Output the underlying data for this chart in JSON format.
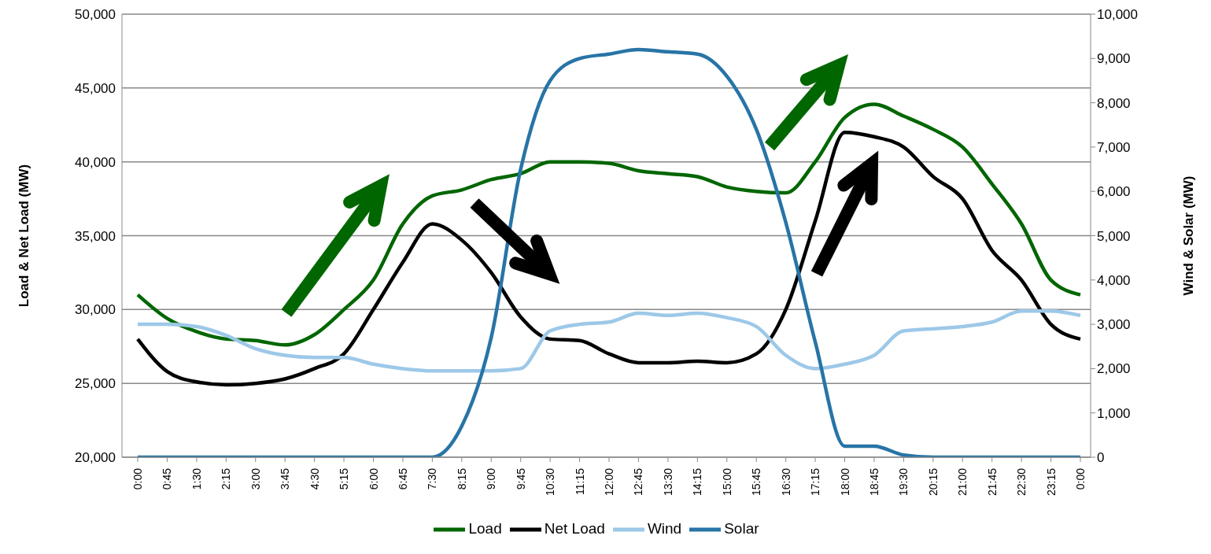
{
  "chart_data": {
    "type": "line",
    "categories": [
      "0:00",
      "0:45",
      "1:30",
      "2:15",
      "3:00",
      "3:45",
      "4:30",
      "5:15",
      "6:00",
      "6:45",
      "7:30",
      "8:15",
      "9:00",
      "9:45",
      "10:30",
      "11:15",
      "12:00",
      "12:45",
      "13:30",
      "14:15",
      "15:00",
      "15:45",
      "16:30",
      "17:15",
      "18:00",
      "18:45",
      "19:30",
      "20:15",
      "21:00",
      "21:45",
      "22:30",
      "23:15",
      "0:00"
    ],
    "series": [
      {
        "name": "Load",
        "color": "#006600",
        "values": [
          31000,
          29400,
          28500,
          28000,
          27900,
          27600,
          28300,
          30000,
          32000,
          35800,
          37700,
          38100,
          38800,
          39200,
          40000,
          40000,
          39900,
          39400,
          39200,
          39000,
          38300,
          38000,
          37900,
          40000,
          43000,
          43900,
          43100,
          42200,
          41000,
          38500,
          35800,
          32000,
          31000
        ]
      },
      {
        "name": "Net Load",
        "color": "#000000",
        "values": [
          28000,
          25800,
          25100,
          24900,
          25000,
          25300,
          26000,
          27000,
          30000,
          33200,
          35800,
          34700,
          32500,
          29500,
          28000,
          27900,
          27000,
          26400,
          26400,
          26500,
          26400,
          27000,
          30000,
          36000,
          42000,
          41700,
          41000,
          39000,
          37500,
          34000,
          32000,
          29000,
          28000
        ]
      },
      {
        "name": "Wind",
        "color": "#9dc8e8",
        "axis": "y2",
        "values": [
          3000,
          3000,
          2950,
          2750,
          2450,
          2300,
          2250,
          2250,
          2100,
          2000,
          1950,
          1950,
          1950,
          2000,
          2850,
          3000,
          3050,
          3250,
          3200,
          3250,
          3150,
          2950,
          2300,
          2000,
          2100,
          2300,
          2850,
          2900,
          2950,
          3050,
          3300,
          3300,
          3200
        ]
      },
      {
        "name": "Solar",
        "color": "#2874a6",
        "axis": "y2",
        "values": [
          0,
          0,
          0,
          0,
          0,
          0,
          0,
          0,
          0,
          0,
          0,
          700,
          2700,
          6500,
          8500,
          9000,
          9100,
          9200,
          9150,
          9100,
          8600,
          7400,
          5300,
          2600,
          250,
          250,
          50,
          0,
          0,
          0,
          0,
          0,
          0
        ]
      }
    ],
    "ylabel": "Load & Net Load (MW)",
    "y2label": "Wind & Solar (MW)",
    "ylim": [
      20000,
      50000
    ],
    "yticks": [
      {
        "value": 20000,
        "label": "20,000"
      },
      {
        "value": 25000,
        "label": "25,000"
      },
      {
        "value": 30000,
        "label": "30,000"
      },
      {
        "value": 35000,
        "label": "35,000"
      },
      {
        "value": 40000,
        "label": "40,000"
      },
      {
        "value": 45000,
        "label": "45,000"
      },
      {
        "value": 50000,
        "label": "50,000"
      }
    ],
    "y2lim": [
      0,
      10000
    ],
    "y2ticks": [
      0,
      {
        "value": 1000,
        "label": "1,000"
      },
      {
        "value": 2000,
        "label": "2,000"
      },
      {
        "value": 3000,
        "label": "3,000"
      },
      {
        "value": 4000,
        "label": "4,000"
      },
      {
        "value": 5000,
        "label": "5,000"
      },
      {
        "value": 6000,
        "label": "6,000"
      },
      {
        "value": 7000,
        "label": "7,000"
      },
      {
        "value": 8000,
        "label": "8,000"
      },
      {
        "value": 9000,
        "label": "9,000"
      },
      {
        "value": 10000,
        "label": "10,000"
      }
    ],
    "grid": "y",
    "legend": "bottom",
    "marker": "none",
    "line_style": "solid"
  }
}
